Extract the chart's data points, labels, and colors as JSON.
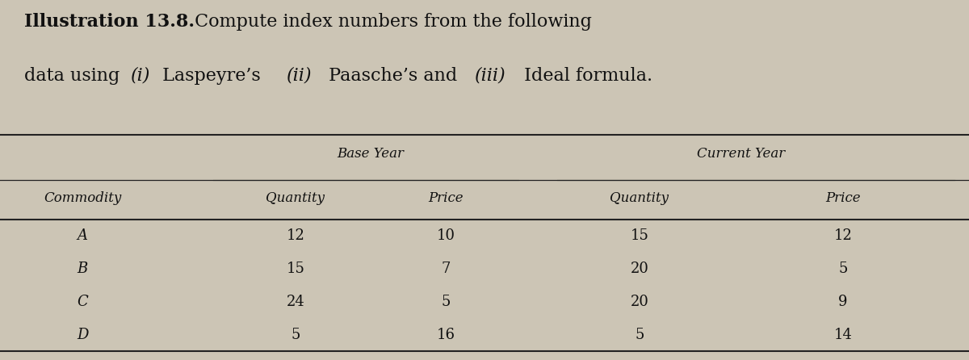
{
  "bg_color": "#ccc5b5",
  "text_color": "#111111",
  "line_color": "#222222",
  "font_size_title": 16,
  "font_size_header": 12,
  "font_size_data": 13,
  "commodities": [
    "A",
    "B",
    "C",
    "D"
  ],
  "base_quantity": [
    "12",
    "15",
    "24",
    "5"
  ],
  "base_price": [
    "10",
    "7",
    "5",
    "16"
  ],
  "curr_quantity": [
    "15",
    "20",
    "20",
    "5"
  ],
  "curr_price": [
    "12",
    "5",
    "9",
    "14"
  ],
  "title_line1_bold": "Illustration 13.8.",
  "title_line1_rest": " Compute index numbers from the following",
  "title_line2_pre": "data using ",
  "title_line2_i1": "(i)",
  "title_line2_m1": " Laspeyre’s ",
  "title_line2_i2": "(ii)",
  "title_line2_m2": " Paasche’s and ",
  "title_line2_i3": "(iii)",
  "title_line2_m3": " Ideal formula."
}
